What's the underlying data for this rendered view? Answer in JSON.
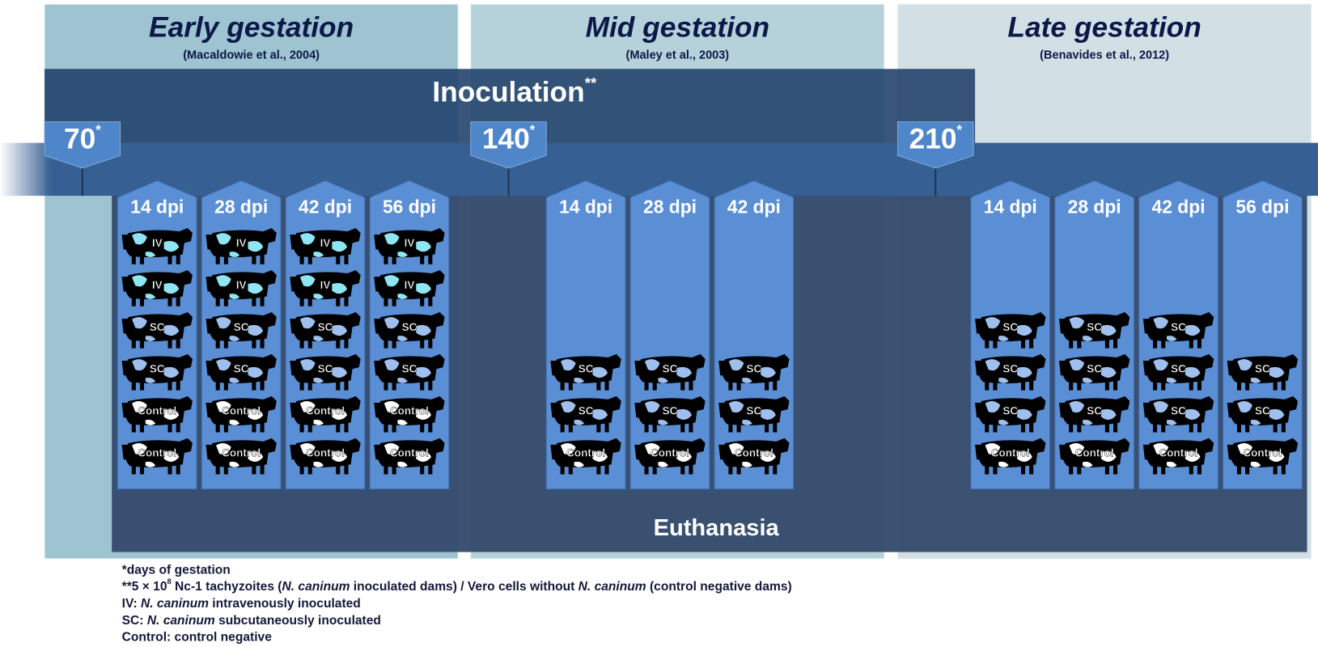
{
  "periods": [
    {
      "title": "Early gestation",
      "ref": "(Macaldowie et al., 2004)",
      "day": "70",
      "day_note": "*",
      "color": "#9dc4d0",
      "groups": [
        {
          "dpi": "14 dpi",
          "cows": [
            0,
            0,
            1,
            1,
            2,
            2
          ]
        },
        {
          "dpi": "28 dpi",
          "cows": [
            0,
            0,
            1,
            1,
            2,
            2
          ]
        },
        {
          "dpi": "42 dpi",
          "cows": [
            0,
            0,
            1,
            1,
            2,
            2
          ]
        },
        {
          "dpi": "56 dpi",
          "cows": [
            0,
            0,
            1,
            1,
            2,
            2
          ]
        }
      ]
    },
    {
      "title": "Mid gestation",
      "ref": "(Maley et al., 2003)",
      "day": "140",
      "day_note": "*",
      "color": "#b5d2da",
      "groups": [
        {
          "dpi": "14 dpi",
          "cows": [
            1,
            1,
            2
          ]
        },
        {
          "dpi": "28 dpi",
          "cows": [
            1,
            1,
            2
          ]
        },
        {
          "dpi": "42 dpi",
          "cows": [
            1,
            1,
            2
          ]
        }
      ]
    },
    {
      "title": "Late gestation",
      "ref": "(Benavides et al., 2012)",
      "day": "210",
      "day_note": "*",
      "color": "#d2e0e6",
      "groups": [
        {
          "dpi": "14 dpi",
          "cows": [
            1,
            1,
            1,
            2
          ]
        },
        {
          "dpi": "28 dpi",
          "cows": [
            1,
            1,
            1,
            2
          ]
        },
        {
          "dpi": "42 dpi",
          "cows": [
            1,
            1,
            1,
            2
          ]
        },
        {
          "dpi": "56 dpi",
          "cows": [
            1,
            1,
            2
          ]
        }
      ]
    }
  ],
  "cow_types": [
    {
      "label": "IV",
      "color": "#8fe6f3"
    },
    {
      "label": "SC",
      "color": "#9fc0ee"
    },
    {
      "label": "Control",
      "color": "#ffffff"
    }
  ],
  "inoculation": {
    "label": "Inoculation",
    "note": "**"
  },
  "euthanasia": "Euthanasia",
  "footnotes": [
    [
      {
        "text": "*days of gestation"
      }
    ],
    [
      {
        "text": "**5 × 10"
      },
      {
        "text": "8",
        "style": "sup"
      },
      {
        "text": " Nc-1 tachyzoites ("
      },
      {
        "text": "N. caninum",
        "style": "italic"
      },
      {
        "text": " inoculated dams) / Vero cells without "
      },
      {
        "text": "N. caninum",
        "style": "italic"
      },
      {
        "text": " (control negative dams)"
      }
    ],
    [
      {
        "text": "IV: "
      },
      {
        "text": "N. caninum",
        "style": "italic"
      },
      {
        "text": " intravenously  inoculated"
      }
    ],
    [
      {
        "text": "SC: "
      },
      {
        "text": "N. caninum",
        "style": "italic"
      },
      {
        "text": " subcutaneously  inoculated"
      }
    ],
    [
      {
        "text": "Control: control negative"
      }
    ]
  ]
}
